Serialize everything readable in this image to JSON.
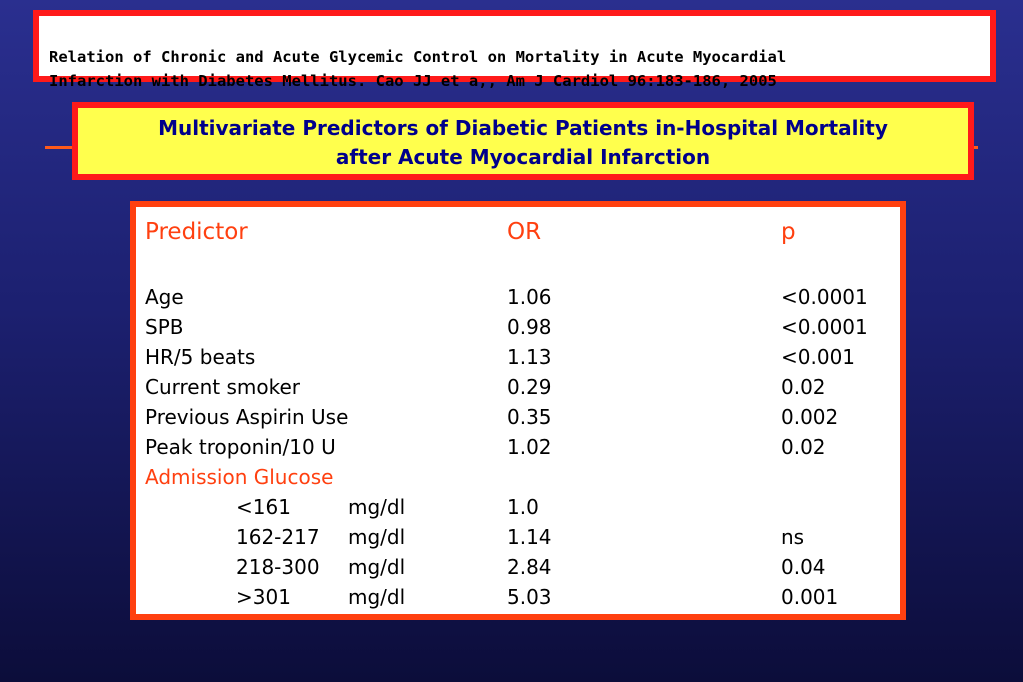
{
  "citation": {
    "text": "Relation of Chronic and Acute Glycemic Control on Mortality in Acute Myocardial\nInfarction with Diabetes Mellitus. Cao JJ et a,, Am J Cardiol 96:183-186, 2005"
  },
  "title": {
    "line1": "Multivariate Predictors of Diabetic Patients in-Hospital Mortality",
    "line2": "after Acute Myocardial Infarction"
  },
  "table": {
    "headers": {
      "predictor": "Predictor",
      "or": "OR",
      "p": "p"
    },
    "rows": [
      {
        "predictor": "Age",
        "or": "1.06",
        "p": "<0.0001"
      },
      {
        "predictor": "SPB",
        "or": "0.98",
        "p": "<0.0001"
      },
      {
        "predictor": "HR/5 beats",
        "or": "1.13",
        "p": "<0.001"
      },
      {
        "predictor": "Current smoker",
        "or": "0.29",
        "p": "0.02"
      },
      {
        "predictor": "Previous Aspirin Use",
        "or": "0.35",
        "p": "0.002"
      },
      {
        "predictor": "Peak troponin/10 U",
        "or": "1.02",
        "p": "0.02"
      }
    ],
    "section_label": "Admission Glucose",
    "glucose_rows": [
      {
        "range": "<161",
        "unit": "mg/dl",
        "or": "1.0",
        "p": ""
      },
      {
        "range": "162-217",
        "unit": "mg/dl",
        "or": "1.14",
        "p": "ns"
      },
      {
        "range": "218-300",
        "unit": "mg/dl",
        "or": "2.84",
        "p": "0.04"
      },
      {
        "range": ">301",
        "unit": "mg/dl",
        "or": "5.03",
        "p": "0.001"
      }
    ]
  },
  "colors": {
    "background": "#1c2070",
    "border_red": "#ff1a1a",
    "title_fill": "#ffff4d",
    "title_text": "#00008b",
    "header_text": "#ff4010"
  }
}
